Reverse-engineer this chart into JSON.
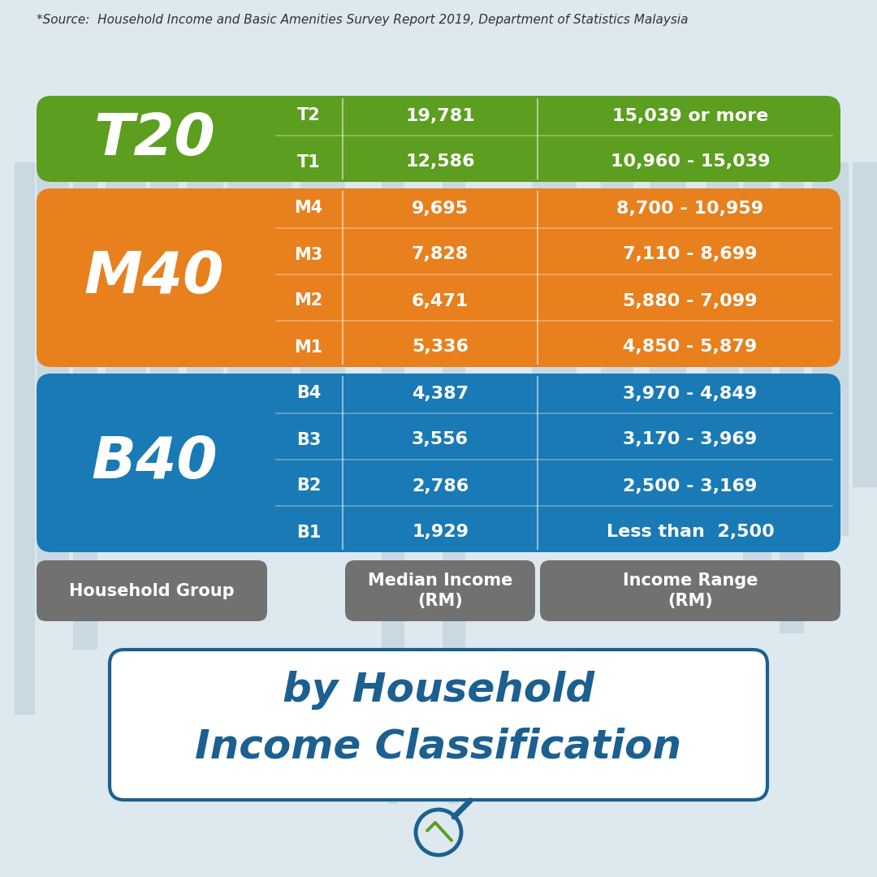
{
  "title_line1": "Income Classification",
  "title_line2": "by Household",
  "title_color": "#1b6090",
  "bg_color": "#dde8ef",
  "header_color": "#717171",
  "b40_color": "#1a7ab5",
  "m40_color": "#e8801e",
  "t20_color": "#5c9e1f",
  "source_text": "*Source:  Household Income and Basic Amenities Survey Report 2019, Department of Statistics Malaysia",
  "rows": [
    {
      "group": "B40",
      "sub": "B1",
      "median": "1,929",
      "range": "Less than  2,500"
    },
    {
      "group": "B40",
      "sub": "B2",
      "median": "2,786",
      "range": "2,500 - 3,169"
    },
    {
      "group": "B40",
      "sub": "B3",
      "median": "3,556",
      "range": "3,170 - 3,969"
    },
    {
      "group": "B40",
      "sub": "B4",
      "median": "4,387",
      "range": "3,970 - 4,849"
    },
    {
      "group": "M40",
      "sub": "M1",
      "median": "5,336",
      "range": "4,850 - 5,879"
    },
    {
      "group": "M40",
      "sub": "M2",
      "median": "6,471",
      "range": "5,880 - 7,099"
    },
    {
      "group": "M40",
      "sub": "M3",
      "median": "7,828",
      "range": "7,110 - 8,699"
    },
    {
      "group": "M40",
      "sub": "M4",
      "median": "9,695",
      "range": "8,700 - 10,959"
    },
    {
      "group": "T20",
      "sub": "T1",
      "median": "12,586",
      "range": "10,960 - 15,039"
    },
    {
      "group": "T20",
      "sub": "T2",
      "median": "19,781",
      "range": "15,039 or more"
    }
  ],
  "group_spans": [
    {
      "group": "B40",
      "start": 0,
      "end": 3,
      "color": "#1a7ab5"
    },
    {
      "group": "M40",
      "start": 4,
      "end": 7,
      "color": "#e8801e"
    },
    {
      "group": "T20",
      "start": 8,
      "end": 9,
      "color": "#5c9e1f"
    }
  ]
}
